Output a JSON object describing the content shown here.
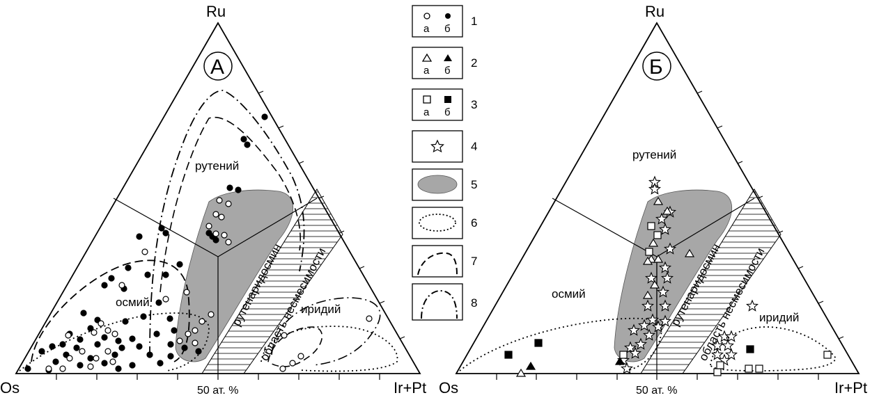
{
  "panels": [
    {
      "id": "A",
      "letter": "А",
      "apex_top": "Ru",
      "apex_left": "Os",
      "apex_right": "Ir+Pt",
      "bottom_label": "50 ат. %",
      "fields": {
        "ruthenium": "рутений",
        "osmium": "осмий",
        "iridium": "иридий",
        "rutheniridosmine": "рутенаридосмин",
        "immiscibility": "область несмесимости"
      },
      "tick_labels": []
    },
    {
      "id": "B",
      "letter": "Б",
      "apex_top": "Ru",
      "apex_left": "Os",
      "apex_right": "Ir+Pt",
      "bottom_label": "50 ат. %",
      "fields": {
        "ruthenium": "рутений",
        "osmium": "осмий",
        "iridium": "иридий",
        "rutheniridosmine": "рутенаридосмин",
        "immiscibility": "область несмесимости"
      },
      "tick_labels": []
    }
  ],
  "legend": [
    {
      "number": "1",
      "symbol": "circle",
      "sub_a": "а",
      "sub_b": "б"
    },
    {
      "number": "2",
      "symbol": "triangle",
      "sub_a": "а",
      "sub_b": "б"
    },
    {
      "number": "3",
      "symbol": "square",
      "sub_a": "а",
      "sub_b": "б"
    },
    {
      "number": "4",
      "symbol": "star"
    },
    {
      "number": "5",
      "symbol": "grey-field"
    },
    {
      "number": "6",
      "symbol": "dotted-contour"
    },
    {
      "number": "7",
      "symbol": "dashed-contour"
    },
    {
      "number": "8",
      "symbol": "dash-dot-contour"
    }
  ],
  "colors": {
    "field_fill": "#a7a7a7",
    "ink": "#000000"
  }
}
